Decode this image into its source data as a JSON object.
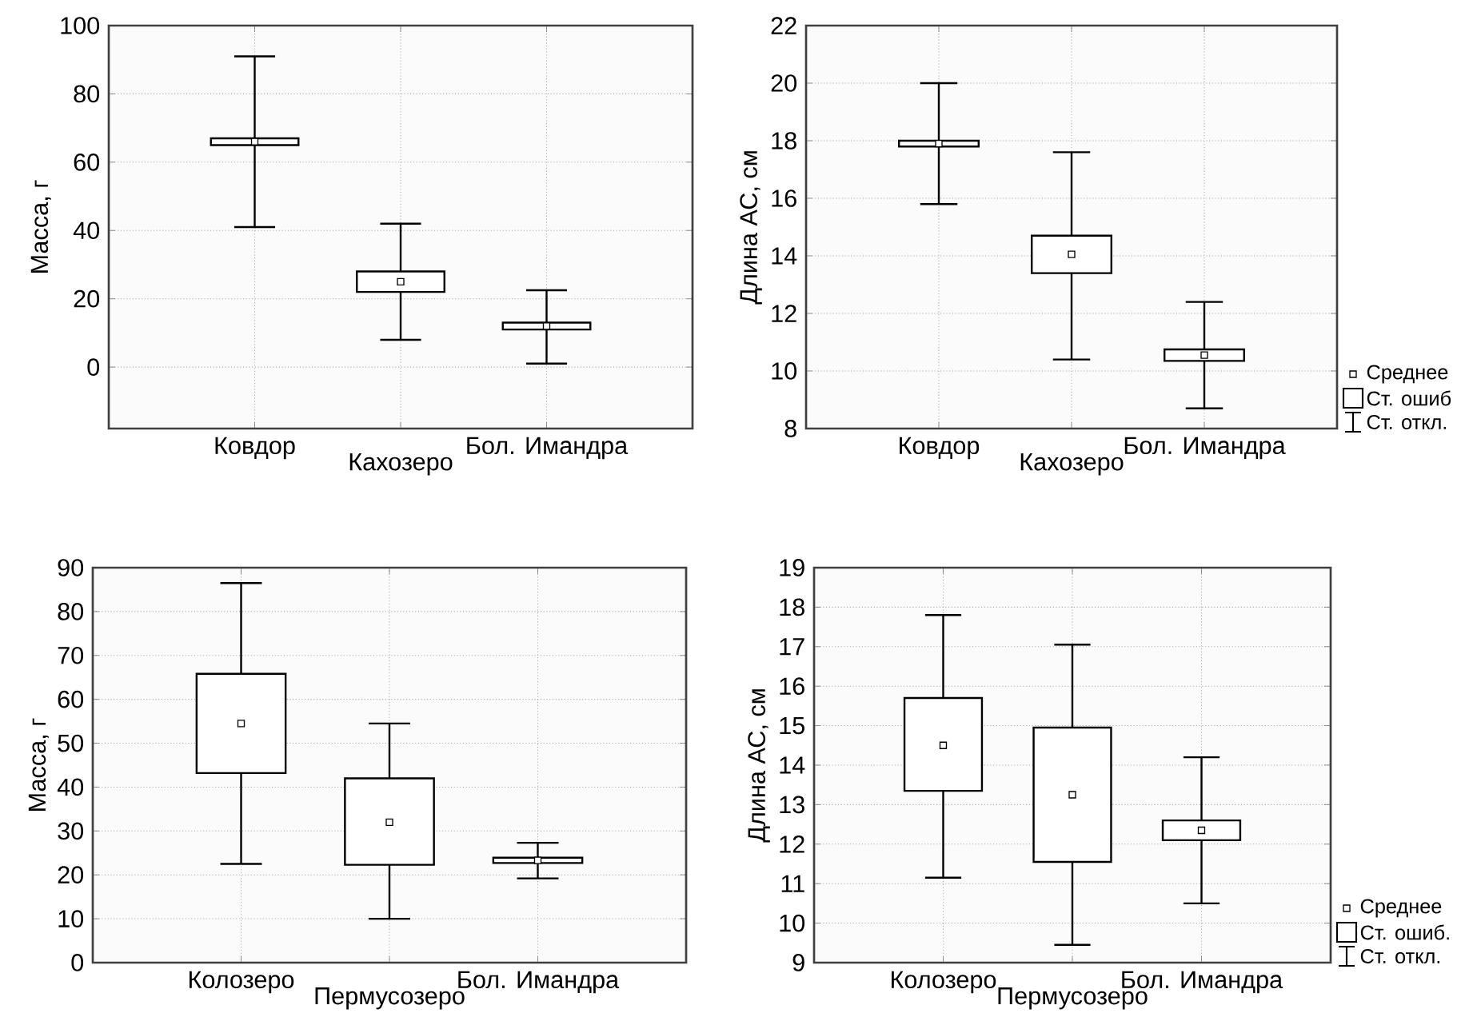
{
  "chart_data": [
    {
      "type": "box",
      "categories": [
        "Ковдор",
        "Кахозеро",
        "Бол. Имандра"
      ],
      "ylabel": "Масса, г",
      "ylim": [
        -18,
        100
      ],
      "yticks": [
        0,
        20,
        40,
        60,
        80,
        100
      ],
      "grid": true,
      "boxes": [
        {
          "low": 41,
          "q1": 65,
          "q3": 67,
          "high": 91,
          "mean": 66
        },
        {
          "low": 8,
          "q1": 22,
          "q3": 28,
          "high": 42,
          "mean": 25
        },
        {
          "low": 1,
          "q1": 11,
          "q3": 13,
          "high": 22.5,
          "mean": 12
        }
      ]
    },
    {
      "type": "box",
      "categories": [
        "Ковдор",
        "Кахозеро",
        "Бол. Имандра"
      ],
      "ylabel": "Длина АС, см",
      "ylim": [
        8,
        22
      ],
      "yticks": [
        8,
        10,
        12,
        14,
        16,
        18,
        20,
        22
      ],
      "grid": true,
      "boxes": [
        {
          "low": 15.8,
          "q1": 17.8,
          "q3": 18.0,
          "high": 20,
          "mean": 17.9
        },
        {
          "low": 10.4,
          "q1": 13.4,
          "q3": 14.7,
          "high": 17.6,
          "mean": 14.05
        },
        {
          "low": 8.7,
          "q1": 10.35,
          "q3": 10.75,
          "high": 12.4,
          "mean": 10.55
        }
      ],
      "annotations": [
        "Среднее",
        "Ст. ошиб",
        "Ст. откл."
      ]
    },
    {
      "type": "box",
      "categories": [
        "Колозеро",
        "Пермусозеро",
        "Бол. Имандра"
      ],
      "ylabel": "Масса, г",
      "ylim": [
        0,
        90
      ],
      "yticks": [
        0,
        10,
        20,
        30,
        40,
        50,
        60,
        70,
        80,
        90
      ],
      "grid": true,
      "boxes": [
        {
          "low": 22.5,
          "q1": 43.2,
          "q3": 65.8,
          "high": 86.5,
          "mean": 54.5
        },
        {
          "low": 10,
          "q1": 22.3,
          "q3": 42,
          "high": 54.5,
          "mean": 32
        },
        {
          "low": 19.2,
          "q1": 22.7,
          "q3": 23.9,
          "high": 27.3,
          "mean": 23.3
        }
      ]
    },
    {
      "type": "box",
      "categories": [
        "Колозеро",
        "Пермусозеро",
        "Бол. Имандра"
      ],
      "ylabel": "Длина АС, см",
      "ylim": [
        9,
        19
      ],
      "yticks": [
        9,
        10,
        11,
        12,
        13,
        14,
        15,
        16,
        17,
        18,
        19
      ],
      "grid": true,
      "boxes": [
        {
          "low": 11.15,
          "q1": 13.35,
          "q3": 15.7,
          "high": 17.8,
          "mean": 14.5
        },
        {
          "low": 9.45,
          "q1": 11.55,
          "q3": 14.95,
          "high": 17.05,
          "mean": 13.25
        },
        {
          "low": 10.5,
          "q1": 12.1,
          "q3": 12.6,
          "high": 14.2,
          "mean": 12.35
        }
      ],
      "annotations": [
        "Среднее",
        "Ст. ошиб.",
        "Ст. откл."
      ]
    }
  ]
}
